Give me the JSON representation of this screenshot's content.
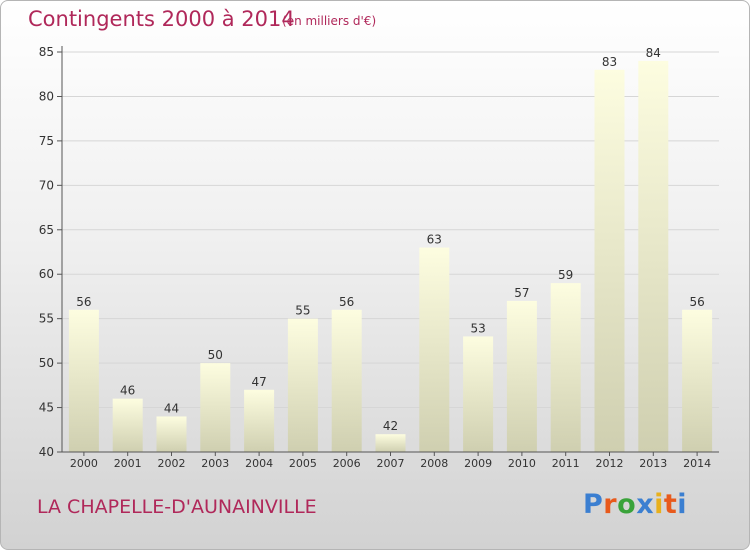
{
  "title": "Contingents 2000 à 2014",
  "subtitle": "(en milliers d'€)",
  "commune": "LA CHAPELLE-D'AUNAINVILLE",
  "logo": {
    "letters": [
      "P",
      "r",
      "o",
      "x",
      "i",
      "t",
      "i"
    ],
    "colors": [
      "#3b7fd1",
      "#e85a1c",
      "#3aa33a",
      "#3b7fd1",
      "#e8b01c",
      "#e85a1c",
      "#3b7fd1"
    ]
  },
  "colors": {
    "title": "#b0285a",
    "bar_top": "#fdfde0",
    "bar_bottom": "#cfcfb0",
    "axis": "#555555",
    "grid": "#d6d6d6"
  },
  "chart_data": {
    "type": "bar",
    "categories": [
      "2000",
      "2001",
      "2002",
      "2003",
      "2004",
      "2005",
      "2006",
      "2007",
      "2008",
      "2009",
      "2010",
      "2011",
      "2012",
      "2013",
      "2014"
    ],
    "values": [
      56,
      46,
      44,
      50,
      47,
      55,
      56,
      42,
      63,
      53,
      57,
      59,
      83,
      84,
      56
    ],
    "ylim": [
      40,
      85
    ],
    "yticks": [
      40,
      45,
      50,
      55,
      60,
      65,
      70,
      75,
      80,
      85
    ],
    "grid": true,
    "xlabel": "",
    "ylabel": ""
  }
}
